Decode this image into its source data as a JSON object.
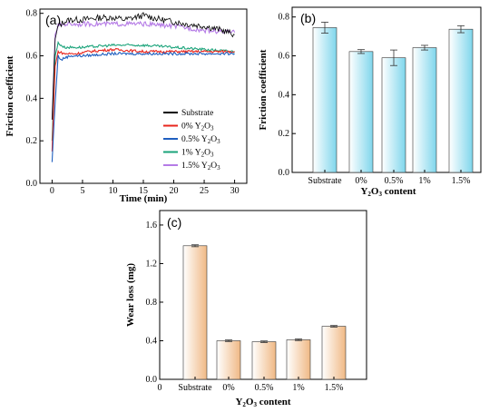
{
  "chart_data": [
    {
      "panel": "(a)",
      "type": "line",
      "xlabel": "Time  (min)",
      "ylabel": "Friction coefficient",
      "xlim": [
        -2,
        32
      ],
      "ylim": [
        0,
        0.82
      ],
      "xticks": [
        "0",
        "5",
        "10",
        "15",
        "20",
        "25",
        "30"
      ],
      "yticks": [
        "0.0",
        "0.2",
        "0.4",
        "0.6",
        "0.8"
      ],
      "legend_position": "right-middle",
      "series": [
        {
          "name": "Substrate",
          "color": "#000000",
          "x": [
            0,
            0.5,
            1,
            2,
            3,
            5,
            8,
            10,
            12,
            15,
            18,
            20,
            22,
            25,
            28,
            30
          ],
          "y": [
            0.3,
            0.68,
            0.74,
            0.76,
            0.77,
            0.77,
            0.78,
            0.78,
            0.77,
            0.79,
            0.77,
            0.76,
            0.75,
            0.74,
            0.72,
            0.7
          ]
        },
        {
          "name": "0% Y2O3",
          "color": "#e8251c",
          "x": [
            0,
            0.5,
            1,
            2,
            4,
            6,
            10,
            15,
            20,
            25,
            30
          ],
          "y": [
            0.15,
            0.55,
            0.62,
            0.61,
            0.61,
            0.62,
            0.63,
            0.62,
            0.62,
            0.62,
            0.62
          ]
        },
        {
          "name": "0.5% Y2O3",
          "color": "#1f5fbf",
          "x": [
            0,
            0.5,
            1,
            1.5,
            2,
            3,
            5,
            10,
            15,
            20,
            25,
            30
          ],
          "y": [
            0.1,
            0.38,
            0.6,
            0.58,
            0.59,
            0.6,
            0.6,
            0.61,
            0.61,
            0.61,
            0.61,
            0.61
          ]
        },
        {
          "name": "1% Y2O3",
          "color": "#1aa37a",
          "x": [
            0,
            0.5,
            1,
            2,
            3,
            5,
            10,
            15,
            20,
            25,
            30
          ],
          "y": [
            0.2,
            0.6,
            0.66,
            0.64,
            0.64,
            0.64,
            0.65,
            0.65,
            0.64,
            0.63,
            0.62
          ]
        },
        {
          "name": "1.5% Y2O3",
          "color": "#b57be6",
          "x": [
            0,
            0.5,
            1,
            2,
            5,
            10,
            15,
            20,
            25,
            30
          ],
          "y": [
            0.3,
            0.7,
            0.74,
            0.75,
            0.75,
            0.75,
            0.75,
            0.74,
            0.72,
            0.71
          ]
        }
      ]
    },
    {
      "panel": "(b)",
      "type": "bar",
      "xlabel": "Y2O3 content",
      "ylabel": "Friction coefficient",
      "ylim": [
        0,
        0.85
      ],
      "yticks": [
        "0.0",
        "0.2",
        "0.4",
        "0.6",
        "0.8"
      ],
      "categories": [
        "Substrate",
        "0%",
        "0.5%",
        "1%",
        "1.5%"
      ],
      "values": [
        0.745,
        0.622,
        0.59,
        0.642,
        0.737
      ],
      "errors": [
        0.028,
        0.01,
        0.04,
        0.012,
        0.018
      ],
      "bar_color": "#8fdcef"
    },
    {
      "panel": "(c)",
      "type": "bar",
      "xlabel": "Y2O3 content",
      "ylabel": "Wear loss (mg)",
      "ylim": [
        0,
        1.75
      ],
      "yticks": [
        "0.0",
        "0.4",
        "0.8",
        "1.2",
        "1.6"
      ],
      "xticks": [
        "0",
        "Substrate",
        "0%",
        "0.5%",
        "1%",
        "1.5%"
      ],
      "categories": [
        "Substrate",
        "0%",
        "0.5%",
        "1%",
        "1.5%"
      ],
      "values": [
        1.385,
        0.4,
        0.39,
        0.41,
        0.55
      ],
      "errors": [
        0.01,
        0.008,
        0.008,
        0.008,
        0.008
      ],
      "bar_color": "#f3c49a"
    }
  ]
}
